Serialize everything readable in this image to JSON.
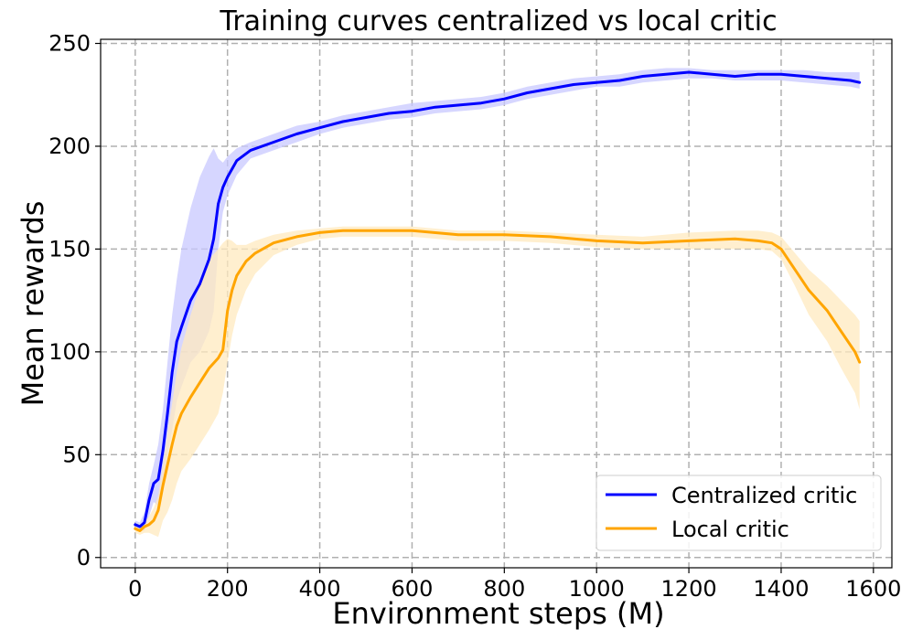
{
  "chart_data": {
    "type": "line",
    "title": "Training curves centralized vs local critic",
    "xlabel": "Environment steps (M)",
    "ylabel": "Mean rewards",
    "xlim": [
      -75,
      1640
    ],
    "ylim": [
      -5,
      252
    ],
    "xticks": [
      0,
      200,
      400,
      600,
      800,
      1000,
      1200,
      1400,
      1600
    ],
    "yticks": [
      0,
      50,
      100,
      150,
      200,
      250
    ],
    "grid": true,
    "legend_position": "lower-right",
    "series": [
      {
        "name": "Centralized critic",
        "color": "#0000ff",
        "band_color": "#c8c8ff",
        "x": [
          0,
          10,
          20,
          30,
          40,
          50,
          60,
          70,
          80,
          90,
          100,
          120,
          140,
          160,
          170,
          180,
          190,
          200,
          220,
          250,
          300,
          350,
          400,
          450,
          500,
          550,
          600,
          650,
          700,
          750,
          800,
          850,
          900,
          950,
          1000,
          1050,
          1100,
          1150,
          1200,
          1250,
          1300,
          1350,
          1400,
          1450,
          1500,
          1550,
          1570
        ],
        "y": [
          16,
          15,
          17,
          28,
          36,
          38,
          52,
          70,
          90,
          105,
          112,
          125,
          133,
          145,
          155,
          172,
          180,
          185,
          193,
          198,
          202,
          206,
          209,
          212,
          214,
          216,
          217,
          219,
          220,
          221,
          223,
          226,
          228,
          230,
          231,
          232,
          234,
          235,
          236,
          235,
          234,
          235,
          235,
          234,
          233,
          232,
          231
        ],
        "upper": [
          18,
          17,
          22,
          36,
          45,
          55,
          72,
          95,
          118,
          135,
          150,
          170,
          185,
          195,
          199,
          194,
          192,
          195,
          199,
          202,
          206,
          210,
          212,
          215,
          217,
          219,
          221,
          222,
          223,
          224,
          226,
          229,
          231,
          233,
          234,
          235,
          237,
          238,
          238,
          237,
          237,
          237,
          237,
          237,
          236,
          236,
          236
        ],
        "lower": [
          14,
          13,
          13,
          20,
          27,
          25,
          35,
          50,
          62,
          76,
          83,
          95,
          100,
          110,
          120,
          150,
          168,
          176,
          186,
          194,
          198,
          202,
          206,
          209,
          211,
          213,
          214,
          216,
          217,
          218,
          220,
          223,
          225,
          227,
          229,
          229,
          231,
          232,
          233,
          233,
          232,
          232,
          232,
          231,
          230,
          229,
          228
        ]
      },
      {
        "name": "Local critic",
        "color": "#ffa500",
        "band_color": "#ffe9bf",
        "x": [
          0,
          10,
          20,
          30,
          40,
          50,
          60,
          70,
          80,
          90,
          100,
          120,
          140,
          160,
          180,
          190,
          200,
          210,
          220,
          240,
          260,
          300,
          350,
          400,
          450,
          500,
          600,
          700,
          800,
          900,
          1000,
          1100,
          1200,
          1300,
          1350,
          1380,
          1400,
          1430,
          1460,
          1500,
          1530,
          1560,
          1570
        ],
        "y": [
          14,
          13,
          15,
          16,
          18,
          23,
          35,
          45,
          55,
          64,
          70,
          78,
          85,
          92,
          97,
          101,
          120,
          130,
          137,
          144,
          148,
          153,
          156,
          158,
          159,
          159,
          159,
          157,
          157,
          156,
          154,
          153,
          154,
          155,
          154,
          153,
          150,
          140,
          130,
          120,
          110,
          100,
          95
        ],
        "upper": [
          16,
          15,
          17,
          20,
          24,
          30,
          45,
          60,
          75,
          90,
          102,
          118,
          132,
          145,
          150,
          153,
          155,
          154,
          152,
          152,
          154,
          157,
          159,
          160,
          161,
          161,
          161,
          159,
          159,
          158,
          157,
          156,
          158,
          159,
          159,
          158,
          156,
          148,
          140,
          132,
          125,
          118,
          115
        ],
        "lower": [
          12,
          11,
          12,
          12,
          11,
          10,
          18,
          22,
          28,
          36,
          42,
          48,
          55,
          62,
          70,
          80,
          95,
          108,
          118,
          130,
          138,
          147,
          152,
          155,
          156,
          156,
          156,
          154,
          154,
          153,
          151,
          150,
          150,
          150,
          150,
          149,
          145,
          132,
          118,
          105,
          92,
          80,
          72
        ]
      }
    ]
  }
}
